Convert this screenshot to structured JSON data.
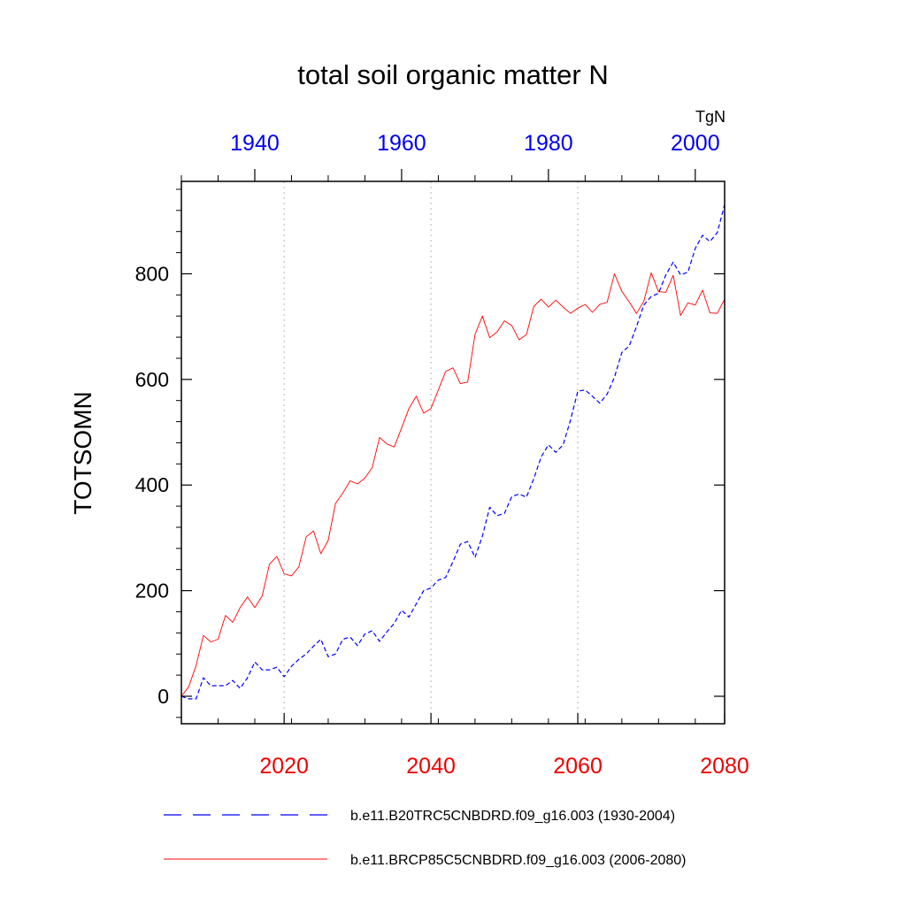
{
  "chart_data": {
    "type": "line",
    "title": "total soil organic matter N",
    "units_label": "TgN",
    "ylabel": "TOTSOMN",
    "ylim": [
      -52,
      975
    ],
    "yticks": [
      0,
      200,
      400,
      600,
      800
    ],
    "ytick_labels": [
      "0",
      "200",
      "400",
      "600",
      "800"
    ],
    "bottom_axis": {
      "range": [
        2006,
        2080
      ],
      "ticks": [
        2020,
        2040,
        2060,
        2080
      ],
      "tick_labels": [
        "2020",
        "2040",
        "2060",
        "2080"
      ],
      "color": "#ee0000"
    },
    "top_axis": {
      "range": [
        1930,
        2004
      ],
      "ticks": [
        1940,
        1960,
        1980,
        2000
      ],
      "tick_labels": [
        "1940",
        "1960",
        "1980",
        "2000"
      ],
      "color": "#0000ee"
    },
    "vertical_gridlines_at": [
      2020,
      2040,
      2060
    ],
    "series": [
      {
        "name": "b.e11.B20TRC5CNBDRD.f09_g16.003 (1930-2004)",
        "axis": "top",
        "color": "#0000ff",
        "dash": "dashed",
        "x": [
          1930,
          1931,
          1932,
          1933,
          1934,
          1935,
          1936,
          1937,
          1938,
          1939,
          1940,
          1941,
          1942,
          1943,
          1944,
          1945,
          1946,
          1947,
          1948,
          1949,
          1950,
          1951,
          1952,
          1953,
          1954,
          1955,
          1956,
          1957,
          1958,
          1959,
          1960,
          1961,
          1962,
          1963,
          1964,
          1965,
          1966,
          1967,
          1968,
          1969,
          1970,
          1971,
          1972,
          1973,
          1974,
          1975,
          1976,
          1977,
          1978,
          1979,
          1980,
          1981,
          1982,
          1983,
          1984,
          1985,
          1986,
          1987,
          1988,
          1989,
          1990,
          1991,
          1992,
          1993,
          1994,
          1995,
          1996,
          1997,
          1998,
          1999,
          2000,
          2001,
          2002,
          2003,
          2004
        ],
        "values": [
          0,
          -5,
          -5,
          35,
          20,
          20,
          20,
          30,
          15,
          35,
          65,
          50,
          50,
          55,
          37,
          57,
          70,
          80,
          95,
          108,
          75,
          80,
          108,
          112,
          96,
          118,
          124,
          104,
          122,
          138,
          163,
          150,
          175,
          200,
          205,
          220,
          225,
          255,
          288,
          293,
          263,
          303,
          358,
          342,
          346,
          378,
          383,
          377,
          412,
          453,
          476,
          462,
          476,
          523,
          578,
          580,
          568,
          555,
          572,
          604,
          651,
          663,
          700,
          741,
          757,
          763,
          798,
          822,
          798,
          803,
          848,
          873,
          861,
          878,
          931
        ]
      },
      {
        "name": "b.e11.BRCP85C5CNBDRD.f09_g16.003 (2006-2080)",
        "axis": "bottom",
        "color": "#ff0000",
        "dash": "solid",
        "x": [
          2006,
          2007,
          2008,
          2009,
          2010,
          2011,
          2012,
          2013,
          2014,
          2015,
          2016,
          2017,
          2018,
          2019,
          2020,
          2021,
          2022,
          2023,
          2024,
          2025,
          2026,
          2027,
          2028,
          2029,
          2030,
          2031,
          2032,
          2033,
          2034,
          2035,
          2036,
          2037,
          2038,
          2039,
          2040,
          2041,
          2042,
          2043,
          2044,
          2045,
          2046,
          2047,
          2048,
          2049,
          2050,
          2051,
          2052,
          2053,
          2054,
          2055,
          2056,
          2057,
          2058,
          2059,
          2060,
          2061,
          2062,
          2063,
          2064,
          2065,
          2066,
          2067,
          2068,
          2069,
          2070,
          2071,
          2072,
          2073,
          2074,
          2075,
          2076,
          2077,
          2078,
          2079,
          2080
        ],
        "values": [
          0,
          18,
          58,
          115,
          103,
          108,
          153,
          140,
          168,
          188,
          168,
          190,
          250,
          265,
          232,
          228,
          245,
          302,
          313,
          270,
          295,
          365,
          385,
          408,
          402,
          413,
          433,
          490,
          478,
          472,
          508,
          545,
          568,
          536,
          545,
          580,
          615,
          622,
          592,
          595,
          685,
          720,
          679,
          690,
          711,
          702,
          675,
          685,
          738,
          752,
          737,
          750,
          737,
          725,
          735,
          742,
          727,
          742,
          746,
          800,
          767,
          747,
          725,
          748,
          802,
          766,
          765,
          797,
          721,
          745,
          741,
          769,
          726,
          725,
          752
        ]
      }
    ]
  }
}
